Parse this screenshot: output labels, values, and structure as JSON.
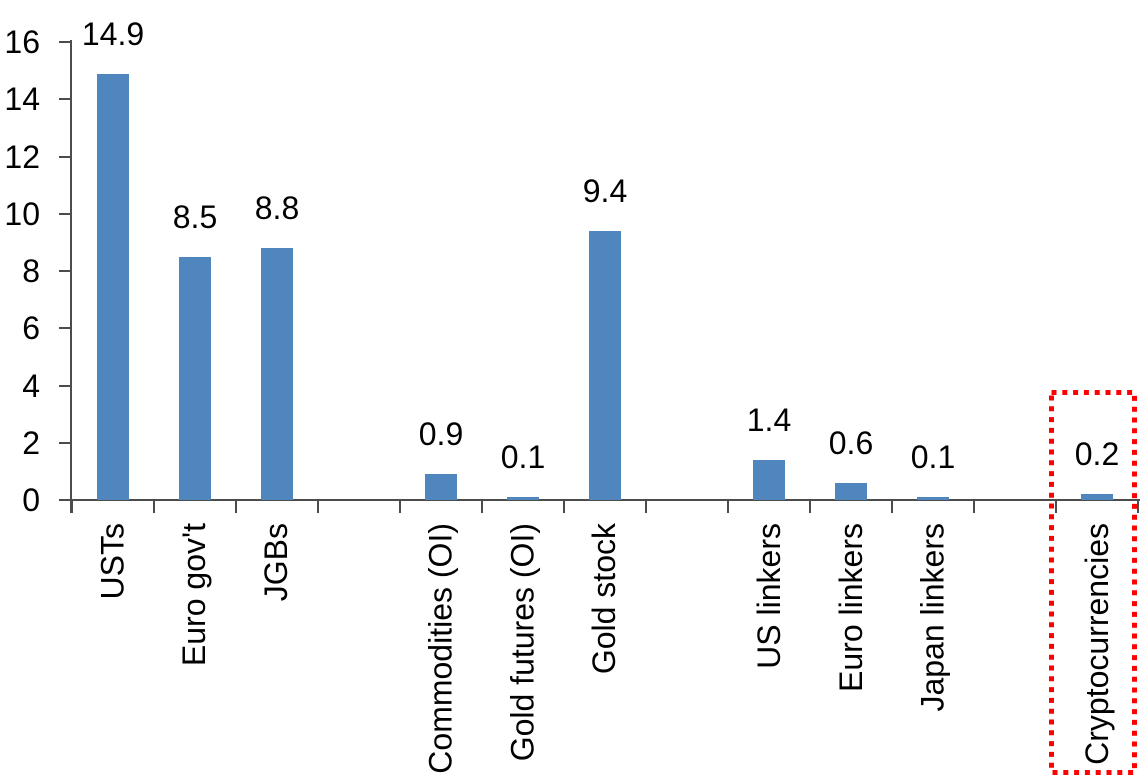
{
  "chart_data": {
    "type": "bar",
    "title": "",
    "xlabel": "",
    "ylabel": "",
    "ylim": [
      0,
      16
    ],
    "yticks": [
      0,
      2,
      4,
      6,
      8,
      10,
      12,
      14,
      16
    ],
    "grid": false,
    "legend": false,
    "bar_color": "#4e86bd",
    "axis_color": "#4c4c4c",
    "text_color": "#000000",
    "highlight_color": "#ff0000",
    "categories": [
      "USTs",
      "Euro gov't",
      "JGBs",
      "",
      "Commodities (OI)",
      "Gold futures (OI)",
      "Gold stock",
      "",
      "US linkers",
      "Euro linkers",
      "Japan linkers",
      "",
      "Cryptocurrencies"
    ],
    "values": [
      14.9,
      8.5,
      8.8,
      null,
      0.9,
      0.1,
      9.4,
      null,
      1.4,
      0.6,
      0.1,
      null,
      0.2
    ],
    "data_labels": [
      "14.9",
      "8.5",
      "8.8",
      "",
      "0.9",
      "0.1",
      "9.4",
      "",
      "1.4",
      "0.6",
      "0.1",
      "",
      "0.2"
    ],
    "highlight": {
      "category": "Cryptocurrencies",
      "style": "red-dotted-rectangle"
    }
  }
}
